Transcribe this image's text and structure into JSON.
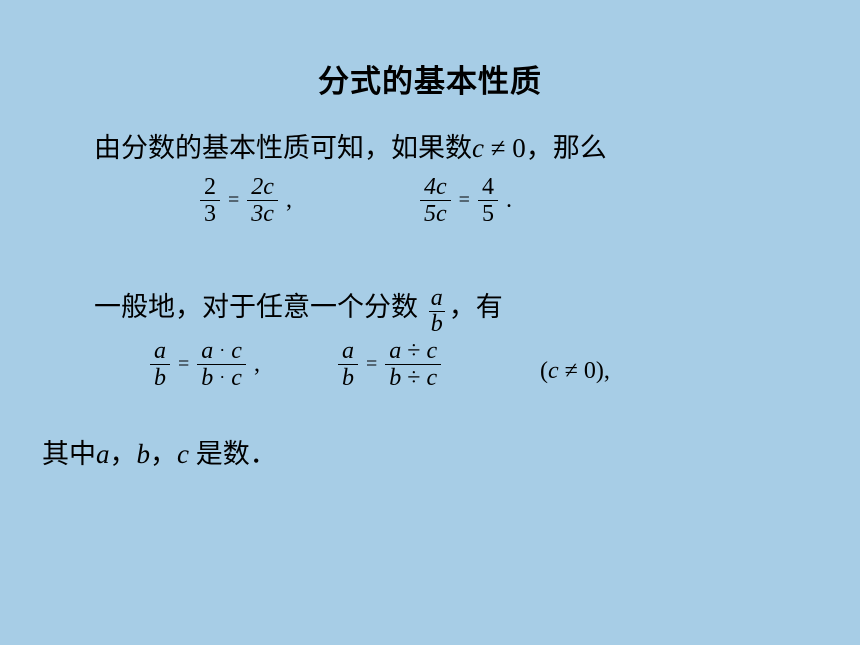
{
  "colors": {
    "background": "#a7cde6",
    "text": "#000000"
  },
  "title": "分式的基本性质",
  "line1": {
    "prefix": "由分数的基本性质可知，如果数",
    "var": "c",
    "neq": " ≠ 0，那么",
    "fontsize": 27
  },
  "ex1": {
    "f1": {
      "num": "2",
      "den": "3"
    },
    "f2": {
      "num": "2c",
      "den": "3c"
    },
    "sep": ",",
    "f3": {
      "num": "4c",
      "den": "5c"
    },
    "f4": {
      "num": "4",
      "den": "5"
    },
    "period": ".",
    "eq": "=",
    "fontsize": 24
  },
  "line2": {
    "text": "一般地，对于任意一个分数",
    "frac": {
      "num": "a",
      "den": "b"
    },
    "tail": "，有",
    "fontsize": 27
  },
  "rule": {
    "lhs": {
      "num": "a",
      "den": "b"
    },
    "mul": {
      "num_l": "a",
      "num_r": "c",
      "den_l": "b",
      "den_r": "c",
      "op": "·"
    },
    "div": {
      "num_l": "a",
      "num_r": "c",
      "den_l": "b",
      "den_r": "c",
      "op": "÷"
    },
    "sep": ",",
    "eq": "=",
    "cond_open": "(",
    "cond_var": "c",
    "cond_rel": " ≠ 0),",
    "fontsize": 24
  },
  "line3": {
    "prefix": "其中",
    "a": "a",
    "b": "b",
    "c": "c",
    "sep": "，",
    "tail": " 是数．",
    "fontsize": 27
  }
}
